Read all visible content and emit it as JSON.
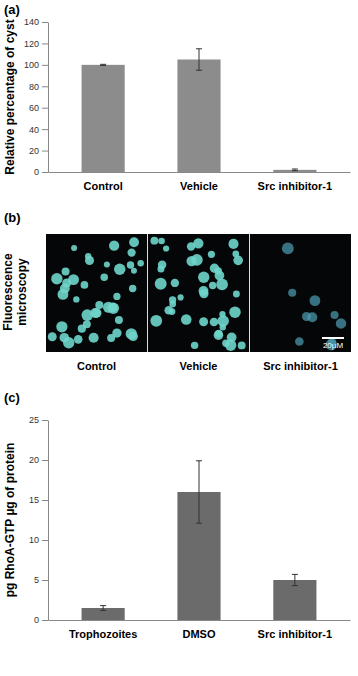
{
  "chart_data": [
    {
      "type": "bar",
      "title": "(a)",
      "y_label": "Relative percentage of cyst",
      "categories": [
        "Control",
        "Vehicle",
        "Src inhibitor-1"
      ],
      "values": [
        100,
        105,
        2
      ],
      "errors": [
        0.5,
        10,
        0.8
      ],
      "color": "#8c8c8c",
      "ylim": [
        0,
        140
      ],
      "yticks": [
        0,
        20,
        40,
        60,
        80,
        100,
        120,
        140
      ],
      "grid": false
    },
    {
      "type": "bar",
      "title": "(c)",
      "y_label": "pg RhoA-GTP µg of protein",
      "categories": [
        "Trophozoites",
        "DMSO",
        "Src inhibitor-1"
      ],
      "values": [
        1.5,
        16,
        5
      ],
      "errors": [
        0.3,
        3.9,
        0.7
      ],
      "color": "#6b6b6b",
      "ylim": [
        0,
        25
      ],
      "yticks": [
        0,
        5,
        10,
        15,
        20,
        25
      ],
      "grid": false
    }
  ],
  "image_panel": {
    "title": "(b)",
    "y_label": "Fluorescence microscopy",
    "captions": [
      "Control",
      "Vehicle",
      "Src inhibitor-1"
    ],
    "scale_bar": "20µM"
  }
}
